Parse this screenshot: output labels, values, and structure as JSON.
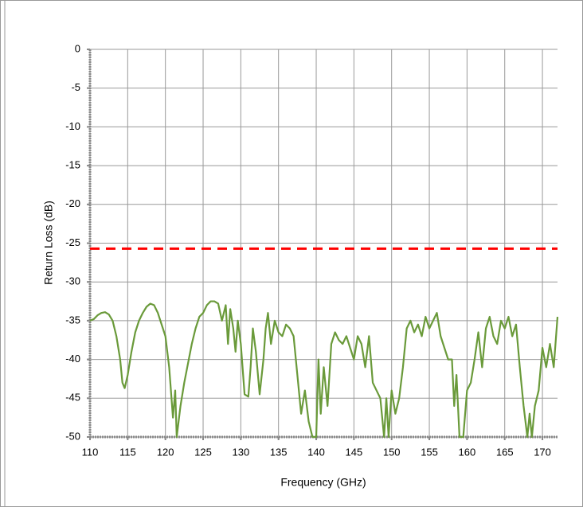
{
  "chart_data": {
    "type": "line",
    "xlabel": "Frequency (GHz)",
    "ylabel": "Return Loss (dB)",
    "x": [
      110,
      110.5,
      111,
      111.5,
      112,
      112.5,
      113,
      113.5,
      114,
      114.3,
      114.6,
      115,
      115.5,
      116,
      116.5,
      117,
      117.5,
      118,
      118.5,
      119,
      119.5,
      120,
      120.5,
      121,
      121.3,
      121.5,
      122,
      122.5,
      123,
      123.5,
      124,
      124.5,
      125,
      125.5,
      126,
      126.5,
      127,
      127.5,
      128,
      128.3,
      128.6,
      129,
      129.3,
      129.6,
      130,
      130.5,
      131,
      131.3,
      131.6,
      132,
      132.5,
      133,
      133.3,
      133.6,
      134,
      134.5,
      135,
      135.5,
      136,
      136.5,
      137,
      137.5,
      138,
      138.5,
      139,
      139.5,
      140,
      140.3,
      140.6,
      141,
      141.5,
      142,
      142.5,
      143,
      143.5,
      144,
      144.5,
      145,
      145.5,
      146,
      146.5,
      147,
      147.5,
      148,
      148.5,
      149,
      149.3,
      149.6,
      150,
      150.5,
      151,
      151.5,
      152,
      152.5,
      153,
      153.5,
      154,
      154.5,
      155,
      155.5,
      156,
      156.5,
      157,
      157.5,
      158,
      158.3,
      158.6,
      159,
      159.5,
      160,
      160.5,
      161,
      161.5,
      162,
      162.5,
      163,
      163.5,
      164,
      164.5,
      165,
      165.5,
      166,
      166.5,
      167,
      167.5,
      168,
      168.3,
      168.6,
      169,
      169.5,
      170,
      170.5,
      171,
      171.5,
      172
    ],
    "series": [
      {
        "color": "#6a9a3a",
        "values": [
          -35,
          -34.8,
          -34.3,
          -34,
          -33.9,
          -34.2,
          -35,
          -37,
          -40,
          -43,
          -43.7,
          -42,
          -39,
          -36.5,
          -35,
          -34,
          -33.2,
          -32.8,
          -33,
          -34,
          -35.5,
          -37,
          -41,
          -47.5,
          -44,
          -50,
          -46,
          -43,
          -40.5,
          -38,
          -36,
          -34.5,
          -34,
          -33,
          -32.5,
          -32.5,
          -32.8,
          -35,
          -33,
          -38,
          -33.5,
          -36,
          -39,
          -35,
          -38,
          -44.5,
          -44.8,
          -41,
          -36,
          -39,
          -44.5,
          -40,
          -36,
          -34,
          -38,
          -35,
          -36.5,
          -37,
          -35.5,
          -36,
          -37,
          -42,
          -47,
          -44,
          -48,
          -50,
          -50,
          -40,
          -47,
          -41,
          -46,
          -38,
          -36.5,
          -37.5,
          -38,
          -37,
          -38.5,
          -40,
          -37,
          -38,
          -41,
          -37,
          -43,
          -44,
          -45,
          -50,
          -45,
          -50,
          -44,
          -47,
          -45,
          -41,
          -36,
          -35,
          -36.5,
          -35.5,
          -37,
          -34.5,
          -36,
          -35,
          -34,
          -37,
          -38.5,
          -40,
          -40,
          -46,
          -42,
          -50,
          -50,
          -44,
          -43,
          -40,
          -36.5,
          -41,
          -36,
          -34.5,
          -37,
          -38,
          -35,
          -36,
          -34.5,
          -37,
          -35.5,
          -41,
          -46,
          -50,
          -47,
          -50,
          -46,
          -44,
          -38.5,
          -41,
          -38,
          -41,
          -34.5
        ]
      }
    ],
    "reference_line": {
      "value": -25.7,
      "color": "#ff0000"
    },
    "xlim": [
      110,
      172
    ],
    "xticks": [
      110,
      115,
      120,
      125,
      130,
      135,
      140,
      145,
      150,
      155,
      160,
      165,
      170
    ],
    "ylim": [
      -50,
      0
    ],
    "yticks": [
      0,
      -5,
      -10,
      -15,
      -20,
      -25,
      -30,
      -35,
      -40,
      -45,
      -50
    ],
    "grid": true
  }
}
